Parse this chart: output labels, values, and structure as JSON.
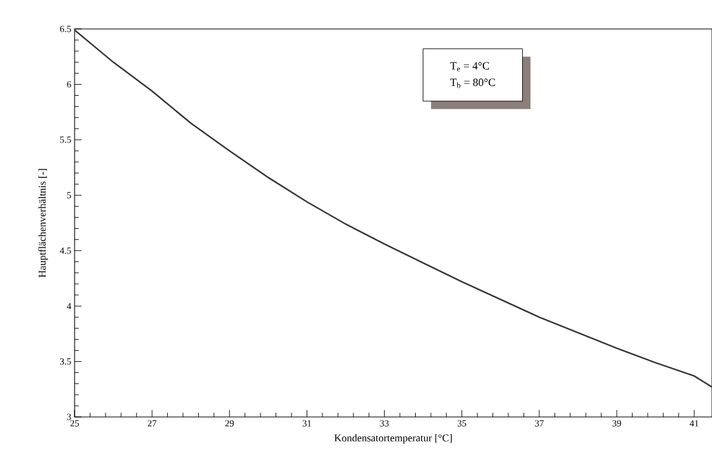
{
  "chart_data": {
    "type": "line",
    "xlabel": "Kondensatortemperatur [°C]",
    "ylabel": "Hauptflächenverhältnis [-]",
    "annotations": [
      "T$_{e}$ = 4°C",
      "T$_{b}$ = 80°C"
    ],
    "x": [
      25,
      26,
      27,
      28,
      29,
      30,
      31,
      32,
      33,
      34,
      35,
      36,
      37,
      38,
      39,
      40,
      41,
      41.46
    ],
    "series": [
      {
        "color": "#333333",
        "values": [
          6.49,
          6.2,
          5.94,
          5.65,
          5.4,
          5.16,
          4.94,
          4.74,
          4.56,
          4.39,
          4.22,
          4.06,
          3.9,
          3.76,
          3.62,
          3.49,
          3.37,
          3.27
        ]
      }
    ],
    "xlim": [
      25,
      41.46
    ],
    "ylim": [
      3,
      6.5
    ],
    "xticks": [
      25,
      27,
      29,
      31,
      33,
      35,
      37,
      39,
      41
    ],
    "yticks": [
      3,
      3.5,
      4,
      4.5,
      5,
      5.5,
      6,
      6.5
    ],
    "grid": false,
    "marker": "none",
    "line_style": "solid"
  }
}
